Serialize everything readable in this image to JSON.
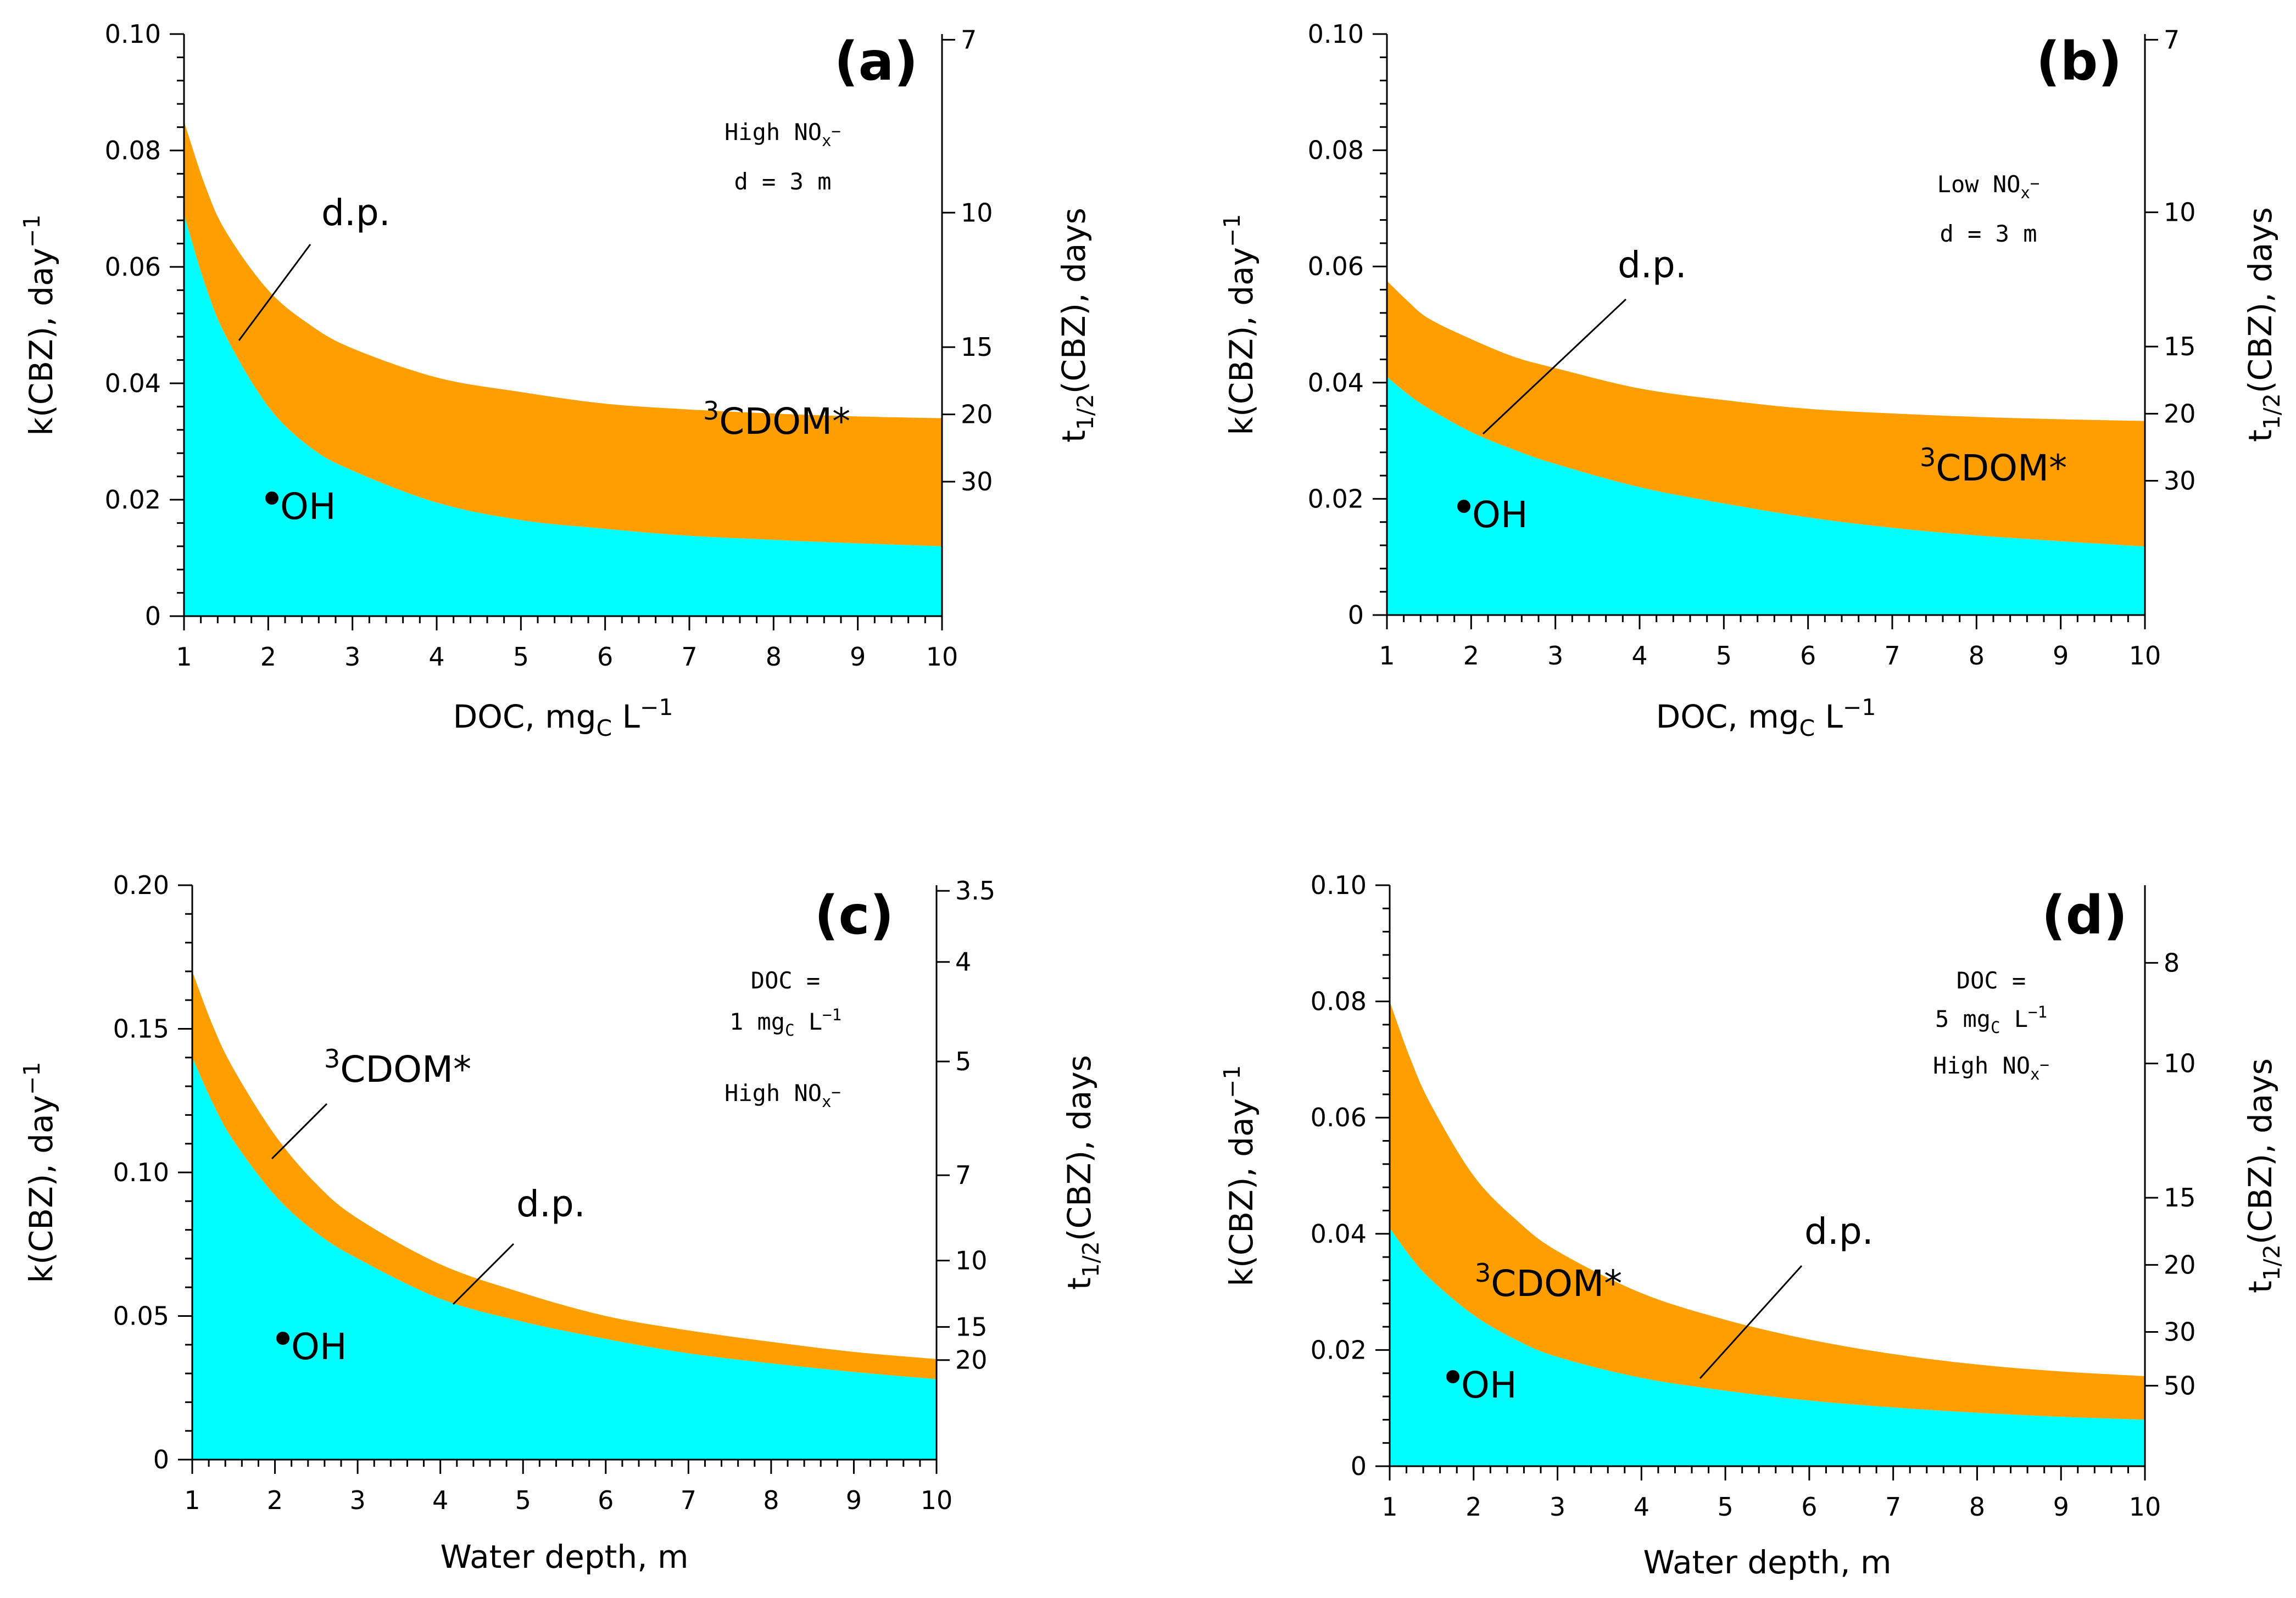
{
  "colors": {
    "oh": "#00ffff",
    "cdom": "#ff9e00",
    "axis": "#000000",
    "line": "#000000"
  },
  "chart_data": [
    {
      "type": "area",
      "panel": "(a)",
      "xlabel": "DOC, mgC L−1",
      "xlabel_parts": [
        "DOC, mg",
        "C",
        " L",
        "−1"
      ],
      "ylabel": "k(CBZ), day−1",
      "y2label": "t1/2(CBZ), days",
      "xlim": [
        1,
        10
      ],
      "ylim": [
        0,
        0.1
      ],
      "xticks": [
        1,
        2,
        3,
        4,
        5,
        6,
        7,
        8,
        9,
        10
      ],
      "yticks": [
        0,
        0.02,
        0.04,
        0.06,
        0.08,
        0.1
      ],
      "ytick_labels": [
        "0",
        "0.02",
        "0.04",
        "0.06",
        "0.08",
        "0.10"
      ],
      "y2ticks": [
        7,
        10,
        15,
        20,
        30
      ],
      "annotations": [
        "High NOx−",
        "d = 3 m"
      ],
      "series": [
        {
          "name": "•OH",
          "x": [
            1,
            1.25,
            1.5,
            2,
            2.5,
            3,
            4,
            5,
            6,
            7,
            8,
            9,
            10
          ],
          "values": [
            0.069,
            0.057,
            0.048,
            0.036,
            0.029,
            0.025,
            0.0195,
            0.0165,
            0.015,
            0.0138,
            0.0131,
            0.0125,
            0.012
          ]
        },
        {
          "name": "3CDOM*",
          "x": [
            1,
            1.25,
            1.5,
            2,
            2.5,
            3,
            4,
            5,
            6,
            7,
            8,
            9,
            10
          ],
          "values": [
            0.085,
            0.074,
            0.066,
            0.056,
            0.05,
            0.046,
            0.041,
            0.0385,
            0.0365,
            0.0355,
            0.0348,
            0.0343,
            0.034
          ]
        }
      ],
      "labels": {
        "oh": "OH",
        "cdom": "CDOM*",
        "cdom_sup": "3",
        "dp": "d.p."
      }
    },
    {
      "type": "area",
      "panel": "(b)",
      "xlabel": "DOC, mgC L−1",
      "xlabel_parts": [
        "DOC, mg",
        "C",
        " L",
        "−1"
      ],
      "ylabel": "k(CBZ), day−1",
      "y2label": "t1/2(CBZ), days",
      "xlim": [
        1,
        10
      ],
      "ylim": [
        0,
        0.1
      ],
      "xticks": [
        1,
        2,
        3,
        4,
        5,
        6,
        7,
        8,
        9,
        10
      ],
      "yticks": [
        0,
        0.02,
        0.04,
        0.06,
        0.08,
        0.1
      ],
      "ytick_labels": [
        "0",
        "0.02",
        "0.04",
        "0.06",
        "0.08",
        "0.10"
      ],
      "y2ticks": [
        7,
        10,
        15,
        20,
        30
      ],
      "annotations": [
        "Low NOx−",
        "d = 3 m"
      ],
      "series": [
        {
          "name": "•OH",
          "x": [
            1,
            1.25,
            1.5,
            2,
            2.5,
            3,
            4,
            5,
            6,
            7,
            8,
            9,
            10
          ],
          "values": [
            0.041,
            0.038,
            0.0355,
            0.0315,
            0.0285,
            0.026,
            0.022,
            0.0192,
            0.0168,
            0.015,
            0.0137,
            0.0127,
            0.0118
          ]
        },
        {
          "name": "3CDOM*",
          "x": [
            1,
            1.25,
            1.5,
            2,
            2.5,
            3,
            4,
            5,
            6,
            7,
            8,
            9,
            10
          ],
          "values": [
            0.0575,
            0.054,
            0.051,
            0.0475,
            0.0445,
            0.0425,
            0.039,
            0.037,
            0.0355,
            0.0347,
            0.0341,
            0.0337,
            0.0334
          ]
        }
      ],
      "labels": {
        "oh": "OH",
        "cdom": "CDOM*",
        "cdom_sup": "3",
        "dp": "d.p."
      }
    },
    {
      "type": "area",
      "panel": "(c)",
      "xlabel": "Water depth, m",
      "xlabel_parts": [
        "Water depth, m",
        "",
        "",
        ""
      ],
      "ylabel": "k(CBZ), day−1",
      "y2label": "t1/2(CBZ), days",
      "xlim": [
        1,
        10
      ],
      "ylim": [
        0,
        0.2
      ],
      "xticks": [
        1,
        2,
        3,
        4,
        5,
        6,
        7,
        8,
        9,
        10
      ],
      "yticks": [
        0,
        0.05,
        0.1,
        0.15,
        0.2
      ],
      "ytick_labels": [
        "0",
        "0.05",
        "0.10",
        "0.15",
        "0.20"
      ],
      "y2ticks": [
        3.5,
        4,
        5,
        7,
        10,
        15,
        20
      ],
      "annotations": [
        "DOC =",
        "1 mgC L−1",
        "High NOx−"
      ],
      "series": [
        {
          "name": "•OH",
          "x": [
            1,
            1.25,
            1.5,
            2,
            2.5,
            3,
            4,
            5,
            6,
            7,
            8,
            9,
            10
          ],
          "values": [
            0.14,
            0.124,
            0.111,
            0.092,
            0.079,
            0.07,
            0.056,
            0.048,
            0.042,
            0.037,
            0.0335,
            0.0305,
            0.028
          ]
        },
        {
          "name": "3CDOM*",
          "x": [
            1,
            1.25,
            1.5,
            2,
            2.5,
            3,
            4,
            5,
            6,
            7,
            8,
            9,
            10
          ],
          "values": [
            0.17,
            0.151,
            0.136,
            0.113,
            0.096,
            0.084,
            0.068,
            0.058,
            0.05,
            0.045,
            0.041,
            0.0375,
            0.035
          ]
        }
      ],
      "labels": {
        "oh": "OH",
        "cdom": "CDOM*",
        "cdom_sup": "3",
        "dp": "d.p."
      }
    },
    {
      "type": "area",
      "panel": "(d)",
      "xlabel": "Water depth, m",
      "xlabel_parts": [
        "Water depth, m",
        "",
        "",
        ""
      ],
      "ylabel": "k(CBZ), day−1",
      "y2label": "t1/2(CBZ), days",
      "xlim": [
        1,
        10
      ],
      "ylim": [
        0,
        0.1
      ],
      "xticks": [
        1,
        2,
        3,
        4,
        5,
        6,
        7,
        8,
        9,
        10
      ],
      "yticks": [
        0,
        0.02,
        0.04,
        0.06,
        0.08,
        0.1
      ],
      "ytick_labels": [
        "0",
        "0.02",
        "0.04",
        "0.06",
        "0.08",
        "0.10"
      ],
      "y2ticks": [
        8,
        10,
        15,
        20,
        30,
        50
      ],
      "annotations": [
        "DOC =",
        "5 mgC L−1",
        "High NOx−"
      ],
      "series": [
        {
          "name": "•OH",
          "x": [
            1,
            1.25,
            1.5,
            2,
            2.5,
            3,
            4,
            5,
            6,
            7,
            8,
            9,
            10
          ],
          "values": [
            0.041,
            0.036,
            0.032,
            0.026,
            0.0218,
            0.0188,
            0.0152,
            0.013,
            0.0113,
            0.0101,
            0.0092,
            0.0085,
            0.008
          ]
        },
        {
          "name": "3CDOM*",
          "x": [
            1,
            1.25,
            1.5,
            2,
            2.5,
            3,
            4,
            5,
            6,
            7,
            8,
            9,
            10
          ],
          "values": [
            0.08,
            0.07,
            0.062,
            0.05,
            0.0425,
            0.037,
            0.0298,
            0.0252,
            0.0218,
            0.0193,
            0.0175,
            0.0163,
            0.0155
          ]
        }
      ],
      "labels": {
        "oh": "OH",
        "cdom": "CDOM*",
        "cdom_sup": "3",
        "dp": "d.p."
      }
    }
  ]
}
